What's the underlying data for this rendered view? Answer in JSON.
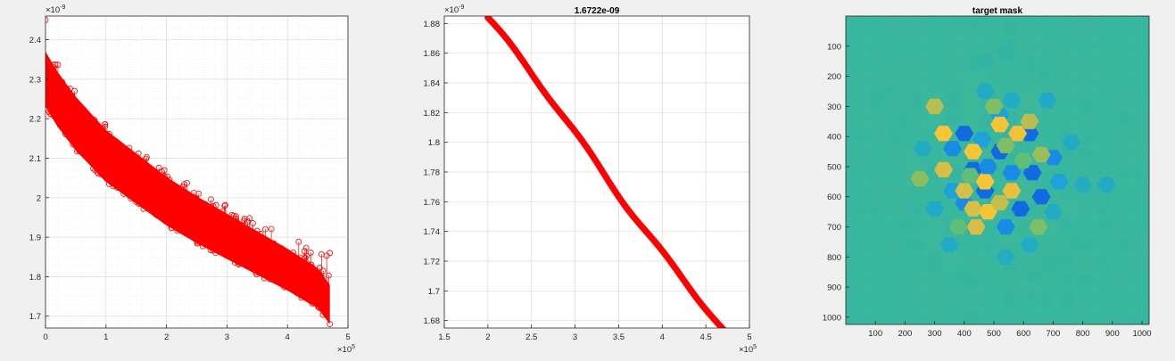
{
  "figure": {
    "background": "#f0f0f0"
  },
  "chart_data": [
    {
      "type": "scatter",
      "title": "",
      "xlabel": "",
      "ylabel": "",
      "xlim": [
        0,
        500000
      ],
      "ylim": [
        1.67e-09,
        2.46e-09
      ],
      "xticks": [
        0,
        100000,
        200000,
        300000,
        400000,
        500000
      ],
      "xtick_labels": [
        "0",
        "1",
        "2",
        "3",
        "4",
        "5"
      ],
      "x_exponent_label": "×10",
      "x_exponent_power": "5",
      "yticks": [
        1.7e-09,
        1.8e-09,
        1.9e-09,
        2e-09,
        2.1e-09,
        2.2e-09,
        2.3e-09,
        2.4e-09
      ],
      "ytick_labels": [
        "1.7",
        "1.8",
        "1.9",
        "2",
        "2.1",
        "2.2",
        "2.3",
        "2.4"
      ],
      "y_exponent_label": "×10",
      "y_exponent_power": "-9",
      "grid": true,
      "minor_grid": true,
      "marker": "o",
      "color": "#ff0000",
      "series": [
        {
          "lower_envelope_x": [
            0,
            20000,
            50000,
            100000,
            150000,
            200000,
            250000,
            300000,
            350000,
            400000,
            450000,
            470000
          ],
          "lower_envelope_y": [
            2.23e-09,
            2.18e-09,
            2.12e-09,
            2.04e-09,
            1.985e-09,
            1.93e-09,
            1.885e-09,
            1.845e-09,
            1.805e-09,
            1.765e-09,
            1.72e-09,
            1.68e-09
          ],
          "upper_envelope_x": [
            0,
            20000,
            50000,
            100000,
            150000,
            200000,
            250000,
            300000,
            350000,
            400000,
            450000,
            470000
          ],
          "upper_envelope_y": [
            2.44e-09,
            2.34e-09,
            2.27e-09,
            2.19e-09,
            2.12e-09,
            2.08e-09,
            2.02e-09,
            1.98e-09,
            1.94e-09,
            1.9e-09,
            1.87e-09,
            1.86e-09
          ]
        }
      ]
    },
    {
      "type": "scatter",
      "title": "1.6722e-09",
      "xlabel": "",
      "ylabel": "",
      "xlim": [
        150000,
        500000
      ],
      "ylim": [
        1.675e-09,
        1.885e-09
      ],
      "xticks": [
        150000,
        200000,
        250000,
        300000,
        350000,
        400000,
        450000,
        500000
      ],
      "xtick_labels": [
        "1.5",
        "2",
        "2.5",
        "3",
        "3.5",
        "4",
        "4.5",
        "5"
      ],
      "x_exponent_label": "×10",
      "x_exponent_power": "5",
      "yticks": [
        1.68e-09,
        1.7e-09,
        1.72e-09,
        1.74e-09,
        1.76e-09,
        1.78e-09,
        1.8e-09,
        1.82e-09,
        1.84e-09,
        1.86e-09,
        1.88e-09
      ],
      "ytick_labels": [
        "1.68",
        "1.7",
        "1.72",
        "1.74",
        "1.76",
        "1.78",
        "1.8",
        "1.82",
        "1.84",
        "1.86",
        "1.88"
      ],
      "y_exponent_label": "×10",
      "y_exponent_power": "-9",
      "grid": true,
      "marker": "o",
      "color": "#ff0000",
      "series": [
        {
          "x": [
            200000,
            470000
          ],
          "y": [
            1.884e-09,
            1.6722e-09
          ]
        }
      ]
    },
    {
      "type": "heatmap",
      "title": "target mask",
      "xlabel": "",
      "ylabel": "",
      "xlim": [
        0,
        1024
      ],
      "ylim": [
        0,
        1024
      ],
      "xticks": [
        100,
        200,
        300,
        400,
        500,
        600,
        700,
        800,
        900,
        1000
      ],
      "xtick_labels": [
        "100",
        "200",
        "300",
        "400",
        "500",
        "600",
        "700",
        "800",
        "900",
        "1000"
      ],
      "yticks": [
        100,
        200,
        300,
        400,
        500,
        600,
        700,
        800,
        900,
        1000
      ],
      "ytick_labels": [
        "100",
        "200",
        "300",
        "400",
        "500",
        "600",
        "700",
        "800",
        "900",
        "1000"
      ],
      "colormap": "parula",
      "background_color": "#3ab79e",
      "cells": [
        {
          "x": 400,
          "y": 390,
          "level": 0.0
        },
        {
          "x": 620,
          "y": 390,
          "level": 0.0
        },
        {
          "x": 520,
          "y": 450,
          "level": 0.0
        },
        {
          "x": 430,
          "y": 510,
          "level": 0.0
        },
        {
          "x": 630,
          "y": 520,
          "level": 0.0
        },
        {
          "x": 470,
          "y": 580,
          "level": 0.0
        },
        {
          "x": 660,
          "y": 600,
          "level": 0.0
        },
        {
          "x": 590,
          "y": 640,
          "level": 0.0
        },
        {
          "x": 360,
          "y": 440,
          "level": 0.12
        },
        {
          "x": 480,
          "y": 500,
          "level": 0.12
        },
        {
          "x": 700,
          "y": 470,
          "level": 0.12
        },
        {
          "x": 560,
          "y": 520,
          "level": 0.12
        },
        {
          "x": 400,
          "y": 620,
          "level": 0.12
        },
        {
          "x": 540,
          "y": 700,
          "level": 0.12
        },
        {
          "x": 520,
          "y": 330,
          "level": 0.2
        },
        {
          "x": 720,
          "y": 550,
          "level": 0.2
        },
        {
          "x": 360,
          "y": 580,
          "level": 0.2
        },
        {
          "x": 460,
          "y": 410,
          "level": 0.2
        },
        {
          "x": 520,
          "y": 360,
          "level": 0.95
        },
        {
          "x": 330,
          "y": 390,
          "level": 0.95
        },
        {
          "x": 580,
          "y": 390,
          "level": 0.9
        },
        {
          "x": 430,
          "y": 450,
          "level": 0.95
        },
        {
          "x": 330,
          "y": 510,
          "level": 0.8
        },
        {
          "x": 470,
          "y": 550,
          "level": 0.95
        },
        {
          "x": 400,
          "y": 580,
          "level": 0.8
        },
        {
          "x": 430,
          "y": 640,
          "level": 0.8
        },
        {
          "x": 480,
          "y": 650,
          "level": 0.95
        },
        {
          "x": 560,
          "y": 580,
          "level": 0.85
        },
        {
          "x": 440,
          "y": 700,
          "level": 0.8
        },
        {
          "x": 520,
          "y": 620,
          "level": 0.75
        },
        {
          "x": 300,
          "y": 300,
          "level": 0.72
        },
        {
          "x": 620,
          "y": 350,
          "level": 0.72
        },
        {
          "x": 660,
          "y": 460,
          "level": 0.65
        },
        {
          "x": 250,
          "y": 540,
          "level": 0.62
        },
        {
          "x": 500,
          "y": 300,
          "level": 0.6
        },
        {
          "x": 650,
          "y": 700,
          "level": 0.6
        },
        {
          "x": 380,
          "y": 700,
          "level": 0.55
        },
        {
          "x": 600,
          "y": 480,
          "level": 0.55
        },
        {
          "x": 540,
          "y": 430,
          "level": 0.6
        },
        {
          "x": 420,
          "y": 530,
          "level": 0.55
        },
        {
          "x": 470,
          "y": 250,
          "level": 0.3
        },
        {
          "x": 560,
          "y": 280,
          "level": 0.3
        },
        {
          "x": 680,
          "y": 280,
          "level": 0.28
        },
        {
          "x": 760,
          "y": 420,
          "level": 0.3
        },
        {
          "x": 260,
          "y": 440,
          "level": 0.3
        },
        {
          "x": 800,
          "y": 560,
          "level": 0.32
        },
        {
          "x": 880,
          "y": 560,
          "level": 0.3
        },
        {
          "x": 350,
          "y": 760,
          "level": 0.3
        },
        {
          "x": 620,
          "y": 760,
          "level": 0.3
        },
        {
          "x": 540,
          "y": 800,
          "level": 0.32
        },
        {
          "x": 700,
          "y": 650,
          "level": 0.3
        },
        {
          "x": 300,
          "y": 640,
          "level": 0.28
        },
        {
          "x": 540,
          "y": 120,
          "level": 0.42
        },
        {
          "x": 470,
          "y": 150,
          "level": 0.42
        },
        {
          "x": 680,
          "y": 200,
          "level": 0.45
        },
        {
          "x": 200,
          "y": 350,
          "level": 0.45
        },
        {
          "x": 150,
          "y": 250,
          "level": 0.45
        },
        {
          "x": 400,
          "y": 850,
          "level": 0.45
        },
        {
          "x": 700,
          "y": 820,
          "level": 0.45
        },
        {
          "x": 880,
          "y": 700,
          "level": 0.45
        },
        {
          "x": 780,
          "y": 750,
          "level": 0.45
        },
        {
          "x": 200,
          "y": 700,
          "level": 0.45
        },
        {
          "x": 820,
          "y": 300,
          "level": 0.45
        },
        {
          "x": 640,
          "y": 860,
          "level": 0.45
        }
      ]
    }
  ]
}
